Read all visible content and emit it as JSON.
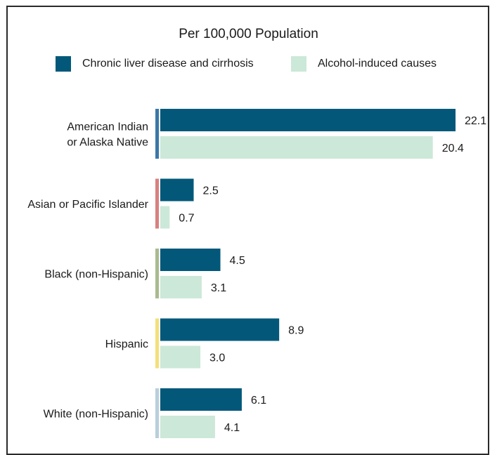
{
  "chart_data": {
    "type": "bar",
    "orientation": "horizontal",
    "title": "Per 100,000 Population",
    "categories": [
      [
        "American Indian",
        "or Alaska Native"
      ],
      [
        "Asian or Pacific Islander"
      ],
      [
        "Black (non-Hispanic)"
      ],
      [
        "Hispanic"
      ],
      [
        "White (non-Hispanic)"
      ]
    ],
    "category_colors": [
      "#3a78a8",
      "#d98080",
      "#a9bb8f",
      "#f4e07a",
      "#b8cfdc"
    ],
    "series": [
      {
        "name": "Chronic liver disease and cirrhosis",
        "color": "#03587a",
        "values": [
          22.1,
          2.5,
          4.5,
          8.9,
          6.1
        ],
        "labels": [
          "22.1",
          "2.5",
          "4.5",
          "8.9",
          "6.1"
        ]
      },
      {
        "name": "Alcohol-induced causes",
        "color": "#cce8d8",
        "values": [
          20.4,
          0.7,
          3.1,
          3.0,
          4.1
        ],
        "labels": [
          "20.4",
          "0.7",
          "3.1",
          "3.0",
          "4.1"
        ]
      }
    ],
    "xlim": [
      0,
      22.1
    ],
    "legend_position": "top",
    "grid": false
  }
}
